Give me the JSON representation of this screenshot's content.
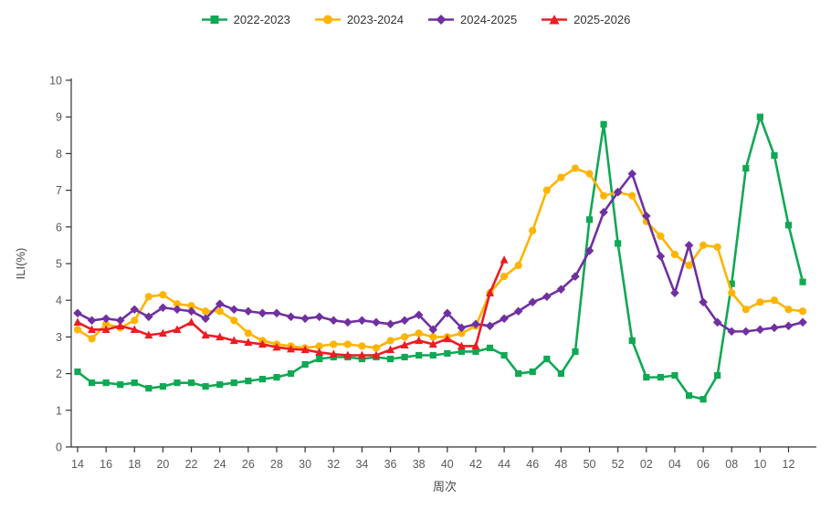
{
  "legend": {
    "items": [
      {
        "label": "2022-2023",
        "marker": "square"
      },
      {
        "label": "2023-2024",
        "marker": "circle"
      },
      {
        "label": "2024-2025",
        "marker": "diamond"
      },
      {
        "label": "2025-2026",
        "marker": "triangle"
      }
    ]
  },
  "colors": {
    "green": "#10A854",
    "yellow": "#FFB400",
    "purple": "#7030A0",
    "red": "#EC1C24",
    "axis": "#333333",
    "tick_text": "#595959"
  },
  "chart_data": {
    "type": "line",
    "title": "",
    "xlabel": "周次",
    "ylabel": "ILI(%)",
    "ylim": [
      0,
      10
    ],
    "y_tick_step": 1,
    "x_tick_every": 2,
    "grid": false,
    "legend_position": "top-center",
    "categories": [
      "14",
      "15",
      "16",
      "17",
      "18",
      "19",
      "20",
      "21",
      "22",
      "23",
      "24",
      "25",
      "26",
      "27",
      "28",
      "29",
      "30",
      "31",
      "32",
      "33",
      "34",
      "35",
      "36",
      "37",
      "38",
      "39",
      "40",
      "41",
      "42",
      "43",
      "44",
      "45",
      "46",
      "47",
      "48",
      "49",
      "50",
      "51",
      "52",
      "01",
      "02",
      "03",
      "04",
      "05",
      "06",
      "07",
      "08",
      "09",
      "10",
      "11",
      "12",
      "13"
    ],
    "series": [
      {
        "name": "2022-2023",
        "color_key": "green",
        "marker": "square",
        "values": [
          2.05,
          1.75,
          1.75,
          1.7,
          1.75,
          1.6,
          1.65,
          1.75,
          1.75,
          1.65,
          1.7,
          1.75,
          1.8,
          1.85,
          1.9,
          2.0,
          2.25,
          2.4,
          2.45,
          2.45,
          2.4,
          2.45,
          2.4,
          2.45,
          2.5,
          2.5,
          2.55,
          2.6,
          2.6,
          2.7,
          2.5,
          2.0,
          2.05,
          2.4,
          2.0,
          2.6,
          6.2,
          8.8,
          5.55,
          2.9,
          1.9,
          1.9,
          1.95,
          1.4,
          1.3,
          1.95,
          4.45,
          7.6,
          9.0,
          7.95,
          6.05,
          4.5
        ]
      },
      {
        "name": "2023-2024",
        "color_key": "yellow",
        "marker": "circle",
        "values": [
          3.2,
          2.95,
          3.35,
          3.25,
          3.45,
          4.1,
          4.15,
          3.9,
          3.85,
          3.7,
          3.7,
          3.45,
          3.1,
          2.9,
          2.8,
          2.75,
          2.7,
          2.75,
          2.8,
          2.8,
          2.75,
          2.7,
          2.9,
          3.0,
          3.1,
          3.0,
          3.0,
          3.1,
          3.3,
          4.2,
          4.65,
          4.95,
          5.9,
          7.0,
          7.35,
          7.6,
          7.45,
          6.85,
          6.95,
          6.85,
          6.15,
          5.75,
          5.25,
          4.95,
          5.5,
          5.45,
          4.2,
          3.75,
          3.95,
          4.0,
          3.75,
          3.7
        ]
      },
      {
        "name": "2024-2025",
        "color_key": "purple",
        "marker": "diamond",
        "values": [
          3.65,
          3.45,
          3.5,
          3.45,
          3.75,
          3.55,
          3.8,
          3.75,
          3.7,
          3.5,
          3.9,
          3.75,
          3.7,
          3.65,
          3.65,
          3.55,
          3.5,
          3.55,
          3.45,
          3.4,
          3.45,
          3.4,
          3.35,
          3.45,
          3.6,
          3.2,
          3.65,
          3.25,
          3.35,
          3.3,
          3.5,
          3.7,
          3.95,
          4.1,
          4.3,
          4.65,
          5.35,
          6.4,
          6.95,
          7.45,
          6.3,
          5.2,
          4.2,
          5.5,
          3.95,
          3.4,
          3.15,
          3.15,
          3.2,
          3.25,
          3.3,
          3.4
        ]
      },
      {
        "name": "2025-2026",
        "color_key": "red",
        "marker": "triangle",
        "values": [
          3.4,
          3.2,
          3.2,
          3.3,
          3.2,
          3.05,
          3.1,
          3.2,
          3.4,
          3.05,
          3.0,
          2.9,
          2.85,
          2.8,
          2.72,
          2.67,
          2.65,
          2.58,
          2.53,
          2.5,
          2.5,
          2.5,
          2.65,
          2.78,
          2.9,
          2.8,
          2.95,
          2.75,
          2.75,
          4.2,
          5.1
        ]
      }
    ]
  }
}
